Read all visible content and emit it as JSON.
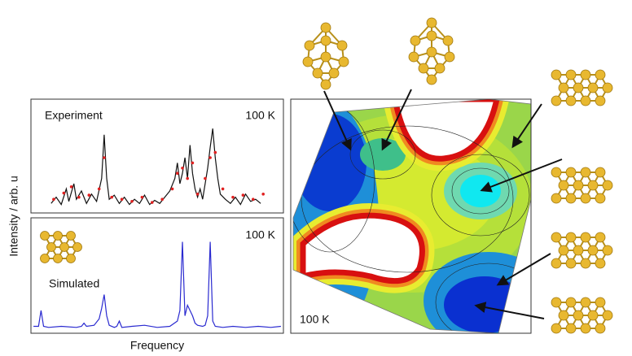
{
  "chart_data": [
    {
      "type": "line",
      "label": "Experiment",
      "temperature": "100 K",
      "y_label": "Intensity / arb. u",
      "xlim": [
        0,
        100
      ],
      "ylim": [
        0,
        1
      ],
      "series": [
        {
          "type": "line",
          "color": "#111111",
          "x": [
            8,
            10,
            12,
            14,
            15,
            17,
            18,
            20,
            22,
            24,
            26,
            28,
            29,
            30,
            31,
            33,
            35,
            37,
            39,
            41,
            43,
            45,
            47,
            49,
            51,
            53,
            55,
            57,
            58,
            59,
            60,
            61,
            62,
            63,
            64,
            65,
            66,
            67,
            68,
            70,
            71,
            72,
            73,
            74,
            75,
            77,
            79,
            81,
            83,
            85,
            87,
            89,
            91
          ],
          "values": [
            0.06,
            0.12,
            0.05,
            0.2,
            0.08,
            0.25,
            0.1,
            0.18,
            0.06,
            0.15,
            0.08,
            0.3,
            0.72,
            0.3,
            0.1,
            0.14,
            0.06,
            0.12,
            0.05,
            0.1,
            0.06,
            0.14,
            0.05,
            0.09,
            0.06,
            0.12,
            0.18,
            0.3,
            0.45,
            0.25,
            0.35,
            0.5,
            0.3,
            0.62,
            0.35,
            0.2,
            0.12,
            0.2,
            0.1,
            0.4,
            0.6,
            0.78,
            0.5,
            0.3,
            0.15,
            0.1,
            0.06,
            0.12,
            0.05,
            0.15,
            0.08,
            0.1,
            0.06
          ]
        },
        {
          "type": "scatter",
          "color": "#e02020",
          "x": [
            9,
            13,
            16,
            19,
            23,
            27,
            29,
            32,
            36,
            40,
            44,
            48,
            52,
            56,
            58,
            60,
            62,
            64,
            66,
            69,
            71,
            73,
            76,
            80,
            84,
            88,
            92
          ],
          "values": [
            0.1,
            0.16,
            0.22,
            0.12,
            0.14,
            0.2,
            0.5,
            0.12,
            0.1,
            0.08,
            0.12,
            0.07,
            0.1,
            0.2,
            0.35,
            0.4,
            0.3,
            0.45,
            0.15,
            0.3,
            0.5,
            0.55,
            0.2,
            0.12,
            0.14,
            0.1,
            0.15
          ]
        }
      ]
    },
    {
      "type": "line",
      "label": "Simulated",
      "temperature": "100 K",
      "x_label": "Frequency",
      "xlim": [
        0,
        100
      ],
      "ylim": [
        0,
        1
      ],
      "series": [
        {
          "type": "line",
          "color": "#2a2ad0",
          "x": [
            1,
            3,
            4,
            5,
            7,
            12,
            18,
            20,
            21,
            22,
            25,
            27,
            28,
            29,
            30,
            31,
            33,
            34,
            35,
            36,
            40,
            45,
            50,
            55,
            58,
            59,
            60,
            61,
            62,
            63,
            64,
            65,
            66,
            68,
            69,
            70,
            71,
            72,
            73,
            76,
            80,
            85,
            90,
            95,
            99
          ],
          "values": [
            0.05,
            0.05,
            0.2,
            0.05,
            0.04,
            0.05,
            0.04,
            0.05,
            0.08,
            0.05,
            0.06,
            0.12,
            0.22,
            0.35,
            0.15,
            0.06,
            0.04,
            0.05,
            0.1,
            0.04,
            0.05,
            0.06,
            0.04,
            0.05,
            0.1,
            0.2,
            0.85,
            0.15,
            0.25,
            0.2,
            0.15,
            0.08,
            0.06,
            0.05,
            0.06,
            0.15,
            0.85,
            0.1,
            0.05,
            0.04,
            0.05,
            0.04,
            0.05,
            0.04,
            0.05
          ]
        }
      ]
    }
  ],
  "map": {
    "temperature": "100 K"
  }
}
